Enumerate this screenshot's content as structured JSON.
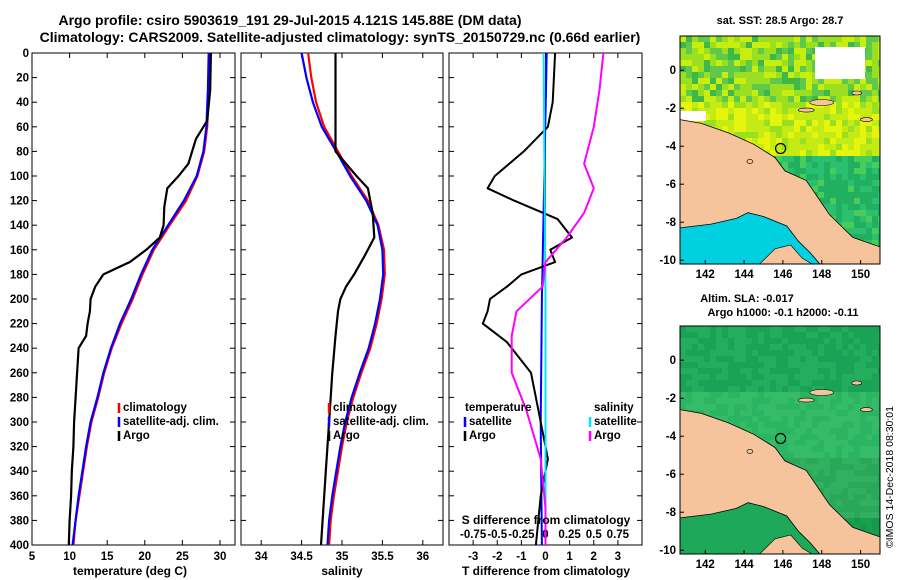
{
  "titles": {
    "line1": "Argo profile: csiro 5903619_191 29-Jul-2015 4.121S 145.88E (DM data)",
    "line2": "Climatology: CARS2009. Satellite-adjusted climatology: synTS_20150729.nc (0.66d earlier)"
  },
  "timestamp": "©IMOS 14-Dec-2018 08:30:01",
  "colors": {
    "climatology": "#ff0000",
    "satellite": "#0000ff",
    "argo": "#000000",
    "argo_s": "#ff00ff",
    "sat_s": "#00e5ff",
    "land": "#f5c49c"
  },
  "chart_data": [
    {
      "type": "line",
      "id": "temperature",
      "title": "",
      "xlabel": "temperature (deg C)",
      "ylabel": "",
      "xlim": [
        5,
        32
      ],
      "ylim": [
        400,
        0
      ],
      "xticks": [
        "5",
        "10",
        "15",
        "20",
        "25",
        "30"
      ],
      "yticks": [
        "0",
        "20",
        "40",
        "60",
        "80",
        "100",
        "120",
        "140",
        "160",
        "180",
        "200",
        "220",
        "240",
        "260",
        "280",
        "300",
        "320",
        "340",
        "360",
        "380",
        "400"
      ],
      "legend": [
        "climatology",
        "satellite-adj. clim.",
        "Argo"
      ],
      "series": [
        {
          "name": "climatology",
          "depth": [
            0,
            30,
            60,
            80,
            100,
            120,
            140,
            160,
            180,
            200,
            220,
            240,
            260,
            280,
            300,
            320,
            340,
            360,
            380,
            400
          ],
          "values": [
            28.6,
            28.5,
            28.3,
            27.9,
            27.0,
            25.5,
            23.3,
            21.2,
            19.7,
            18.4,
            16.9,
            15.6,
            14.6,
            13.8,
            12.9,
            12.3,
            11.8,
            11.3,
            10.8,
            10.5
          ]
        },
        {
          "name": "satellite-adj. clim.",
          "depth": [
            0,
            30,
            60,
            80,
            100,
            120,
            140,
            160,
            180,
            200,
            220,
            240,
            260,
            280,
            300,
            320,
            340,
            360,
            380,
            400
          ],
          "values": [
            28.5,
            28.4,
            28.2,
            27.8,
            26.9,
            25.2,
            23.1,
            21.0,
            19.5,
            18.2,
            16.7,
            15.5,
            14.5,
            13.7,
            12.8,
            12.2,
            11.7,
            11.2,
            10.8,
            10.4
          ]
        },
        {
          "name": "Argo",
          "depth": [
            0,
            30,
            55,
            70,
            90,
            100,
            110,
            125,
            140,
            150,
            160,
            170,
            180,
            190,
            200,
            210,
            220,
            230,
            240,
            260,
            280,
            300,
            320,
            340,
            360,
            380,
            400
          ],
          "values": [
            28.8,
            28.7,
            28.3,
            26.8,
            25.8,
            24.5,
            23.0,
            22.6,
            22.5,
            22.0,
            20.2,
            18.0,
            14.5,
            13.4,
            12.8,
            12.7,
            12.4,
            12.2,
            11.2,
            11.0,
            10.8,
            10.6,
            10.5,
            10.3,
            10.2,
            10.0,
            9.9
          ]
        }
      ]
    },
    {
      "type": "line",
      "id": "salinity",
      "xlabel": "salinity",
      "xlim": [
        33.75,
        36.25
      ],
      "ylim": [
        400,
        0
      ],
      "xticks": [
        "34",
        "34.5",
        "35",
        "35.5",
        "36"
      ],
      "legend": [
        "climatology",
        "satellite-adj. clim.",
        "Argo"
      ],
      "series": [
        {
          "name": "climatology",
          "depth": [
            0,
            20,
            40,
            60,
            80,
            100,
            120,
            140,
            160,
            180,
            200,
            220,
            240,
            260,
            280,
            300,
            320,
            340,
            360,
            380,
            400
          ],
          "values": [
            34.58,
            34.62,
            34.68,
            34.78,
            34.95,
            35.12,
            35.32,
            35.45,
            35.52,
            35.53,
            35.49,
            35.43,
            35.35,
            35.24,
            35.14,
            35.06,
            35.0,
            34.95,
            34.9,
            34.86,
            34.84
          ]
        },
        {
          "name": "satellite-adj. clim.",
          "depth": [
            0,
            20,
            40,
            60,
            80,
            100,
            120,
            140,
            160,
            180,
            200,
            220,
            240,
            260,
            280,
            300,
            320,
            340,
            360,
            380,
            400
          ],
          "values": [
            34.5,
            34.56,
            34.64,
            34.75,
            34.93,
            35.1,
            35.3,
            35.44,
            35.5,
            35.51,
            35.47,
            35.41,
            35.33,
            35.22,
            35.12,
            35.04,
            34.98,
            34.93,
            34.88,
            34.84,
            34.82
          ]
        },
        {
          "name": "Argo",
          "depth": [
            0,
            20,
            40,
            60,
            80,
            90,
            100,
            110,
            130,
            150,
            165,
            180,
            190,
            200,
            210,
            230,
            260,
            300,
            340,
            380,
            400
          ],
          "values": [
            34.92,
            34.92,
            34.92,
            34.92,
            34.92,
            35.05,
            35.18,
            35.32,
            35.38,
            35.4,
            35.28,
            35.15,
            35.05,
            34.98,
            34.95,
            34.92,
            34.88,
            34.84,
            34.8,
            34.76,
            34.74
          ]
        }
      ]
    },
    {
      "type": "line",
      "id": "differences",
      "xlabel": "T difference from climatology",
      "xlim": [
        -4,
        4
      ],
      "ylim": [
        400,
        0
      ],
      "xticks": [
        "-3",
        "-2",
        "-1",
        "0",
        "1",
        "2",
        "3"
      ],
      "top_axis_label": "S difference from climatology",
      "top_ticks": [
        "-0.75",
        "-0.5",
        "-0.25",
        "0",
        "0.25",
        "0.5",
        "0.75"
      ],
      "legend": [
        "temperature",
        "satellite",
        "Argo",
        "salinity",
        "satellite",
        "Argo"
      ],
      "series": [
        {
          "name": "temperature satellite",
          "depth": [
            0,
            100,
            200,
            300,
            400
          ],
          "values": [
            0.05,
            -0.05,
            -0.15,
            -0.2,
            -0.15
          ]
        },
        {
          "name": "temperature Argo",
          "depth": [
            0,
            40,
            60,
            80,
            100,
            110,
            120,
            135,
            150,
            160,
            170,
            180,
            190,
            200,
            210,
            220,
            235,
            260,
            290,
            310,
            330,
            360,
            400
          ],
          "values": [
            0.4,
            0.3,
            0.1,
            -0.9,
            -2.1,
            -2.4,
            -1.3,
            0.5,
            1.1,
            0.2,
            0.4,
            -1.0,
            -1.6,
            -2.3,
            -2.4,
            -2.6,
            -1.6,
            -0.6,
            -0.3,
            -0.1,
            0.1,
            -0.2,
            -0.4
          ]
        },
        {
          "name": "salinity satellite",
          "depth": [
            0,
            100,
            200,
            300,
            400
          ],
          "values": [
            -0.02,
            -0.01,
            0.0,
            0.0,
            0.0
          ]
        },
        {
          "name": "salinity Argo",
          "depth": [
            0,
            30,
            60,
            90,
            110,
            130,
            150,
            170,
            190,
            210,
            230,
            260,
            290,
            330,
            370,
            400
          ],
          "values": [
            0.6,
            0.56,
            0.5,
            0.4,
            0.5,
            0.4,
            0.22,
            0.0,
            -0.03,
            -0.3,
            -0.35,
            -0.35,
            -0.2,
            -0.05,
            0.0,
            0.0
          ]
        }
      ]
    },
    {
      "type": "heatmap",
      "id": "sst-map",
      "title": "sat. SST: 28.5 Argo: 28.7",
      "xticks": [
        "142",
        "144",
        "146",
        "148",
        "150"
      ],
      "yticks": [
        "0",
        "-2",
        "-4",
        "-6",
        "-8",
        "-10"
      ],
      "xlim": [
        140.7,
        151
      ],
      "ylim": [
        -10.2,
        1.8
      ],
      "argo_position": {
        "lon": 145.88,
        "lat": -4.121
      }
    },
    {
      "type": "heatmap",
      "id": "sla-map",
      "title": "Altim. SLA: -0.017",
      "subtitle": "Argo h1000: -0.1 h2000: -0.11",
      "xticks": [
        "142",
        "144",
        "146",
        "148",
        "150"
      ],
      "yticks": [
        "0",
        "-2",
        "-4",
        "-6",
        "-8",
        "-10"
      ],
      "xlim": [
        140.7,
        151
      ],
      "ylim": [
        -10.2,
        1.8
      ],
      "argo_position": {
        "lon": 145.88,
        "lat": -4.121
      }
    }
  ]
}
